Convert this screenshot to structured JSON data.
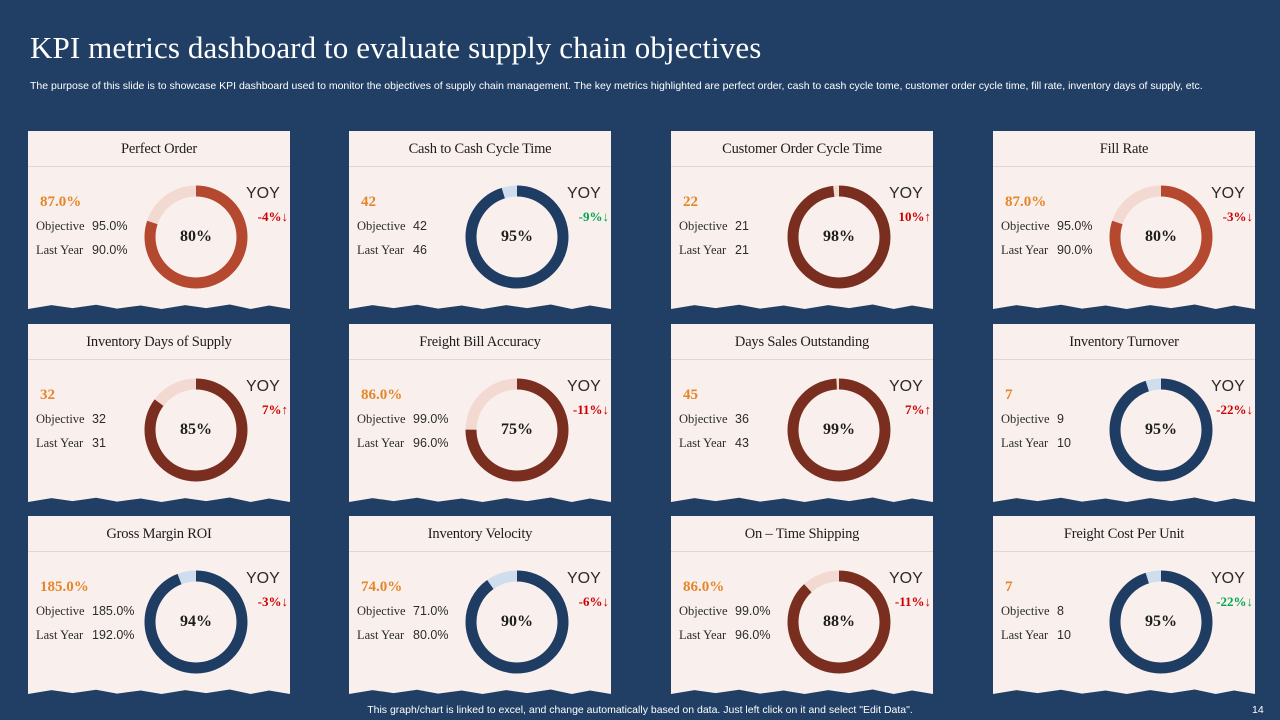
{
  "title": "KPI metrics dashboard to evaluate supply chain objectives",
  "subtitle": "The purpose of this slide is to showcase KPI dashboard used to monitor the objectives of supply chain management. The key metrics highlighted are perfect order, cash to cash cycle tome, customer order cycle time, fill rate, inventory days of supply, etc.",
  "labels": {
    "objective": "Objective",
    "last_year": "Last Year",
    "yoy": "YOY"
  },
  "colors": {
    "background": "#213f64",
    "card": "#f9efec",
    "orange": "#e6852a",
    "red_track": "#b5492f",
    "brown": "#7a2e1f",
    "navy": "#1f3c63",
    "good": "#00a651",
    "bad": "#cc0000"
  },
  "cards": [
    {
      "title": "Perfect Order",
      "value": "87.0%",
      "objective": "95.0%",
      "last_year": "90.0%",
      "pct": "80%",
      "pct_value": 80,
      "yoy": "-4%",
      "yoy_dir": "down",
      "yoy_good": false,
      "color": "#b5492f",
      "track": "#f2d9d2"
    },
    {
      "title": "Cash to Cash Cycle Time",
      "value": "42",
      "objective": "42",
      "last_year": "46",
      "pct": "95%",
      "pct_value": 95,
      "yoy": "-9%",
      "yoy_dir": "down",
      "yoy_good": true,
      "color": "#1f3c63",
      "track": "#cfddee"
    },
    {
      "title": "Customer Order Cycle Time",
      "value": "22",
      "objective": "21",
      "last_year": "21",
      "pct": "98%",
      "pct_value": 98,
      "yoy": "10%",
      "yoy_dir": "up",
      "yoy_good": false,
      "color": "#7a2e1f",
      "track": "#f2d9d2"
    },
    {
      "title": "Fill Rate",
      "value": "87.0%",
      "objective": "95.0%",
      "last_year": "90.0%",
      "pct": "80%",
      "pct_value": 80,
      "yoy": "-3%",
      "yoy_dir": "down",
      "yoy_good": false,
      "color": "#b5492f",
      "track": "#f2d9d2"
    },
    {
      "title": "Inventory Days of Supply",
      "value": "32",
      "objective": "32",
      "last_year": "31",
      "pct": "85%",
      "pct_value": 85,
      "yoy": "7%",
      "yoy_dir": "up",
      "yoy_good": false,
      "color": "#7a2e1f",
      "track": "#f2d9d2"
    },
    {
      "title": "Freight Bill Accuracy",
      "value": "86.0%",
      "objective": "99.0%",
      "last_year": "96.0%",
      "pct": "75%",
      "pct_value": 75,
      "yoy": "-11%",
      "yoy_dir": "down",
      "yoy_good": false,
      "color": "#7a2e1f",
      "track": "#f2d9d2"
    },
    {
      "title": "Days Sales Outstanding",
      "value": "45",
      "objective": "36",
      "last_year": "43",
      "pct": "99%",
      "pct_value": 99,
      "yoy": "7%",
      "yoy_dir": "up",
      "yoy_good": false,
      "color": "#7a2e1f",
      "track": "#f2d9d2"
    },
    {
      "title": "Inventory Turnover",
      "value": "7",
      "objective": "9",
      "last_year": "10",
      "pct": "95%",
      "pct_value": 95,
      "yoy": "-22%",
      "yoy_dir": "down",
      "yoy_good": false,
      "color": "#1f3c63",
      "track": "#cfddee"
    },
    {
      "title": "Gross Margin ROI",
      "value": "185.0%",
      "objective": "185.0%",
      "last_year": "192.0%",
      "pct": "94%",
      "pct_value": 94,
      "yoy": "-3%",
      "yoy_dir": "down",
      "yoy_good": false,
      "color": "#1f3c63",
      "track": "#cfddee"
    },
    {
      "title": "Inventory Velocity",
      "value": "74.0%",
      "objective": "71.0%",
      "last_year": "80.0%",
      "pct": "90%",
      "pct_value": 90,
      "yoy": "-6%",
      "yoy_dir": "down",
      "yoy_good": false,
      "color": "#1f3c63",
      "track": "#cfddee"
    },
    {
      "title": "On – Time Shipping",
      "value": "86.0%",
      "objective": "99.0%",
      "last_year": "96.0%",
      "pct": "88%",
      "pct_value": 88,
      "yoy": "-11%",
      "yoy_dir": "down",
      "yoy_good": false,
      "color": "#7a2e1f",
      "track": "#f2d9d2"
    },
    {
      "title": "Freight Cost Per Unit",
      "value": "7",
      "objective": "8",
      "last_year": "10",
      "pct": "95%",
      "pct_value": 95,
      "yoy": "-22%",
      "yoy_dir": "down",
      "yoy_good": true,
      "color": "#1f3c63",
      "track": "#cfddee"
    }
  ],
  "footer": "This graph/chart is linked to excel,  and change automatically based on data. Just left click on it and select \"Edit Data\".",
  "page_number": "14"
}
